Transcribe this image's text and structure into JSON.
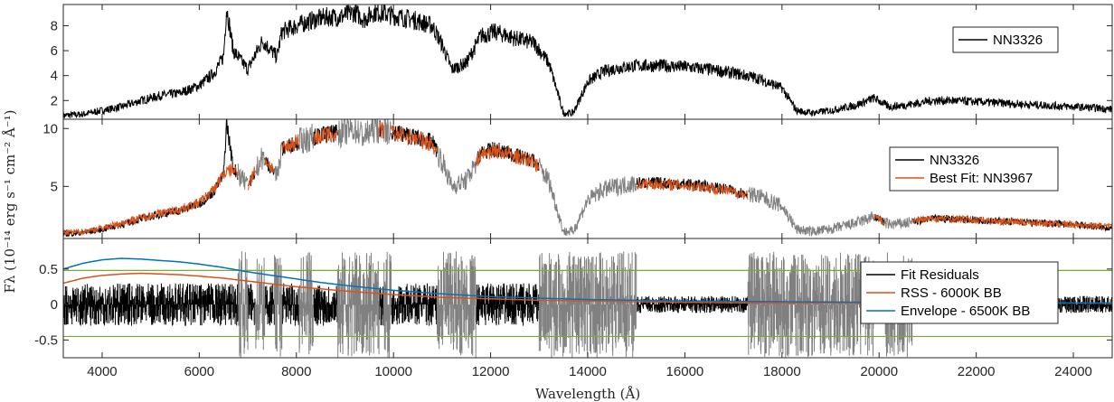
{
  "chart_data": {
    "type": "line",
    "xlabel": "Wavelength (Å)",
    "ylabel": "Fλ (10⁻¹⁴ erg s⁻¹ cm⁻² Å⁻¹)",
    "xlim": [
      3200,
      24800
    ],
    "x_ticks": [
      "4000",
      "6000",
      "8000",
      "10000",
      "12000",
      "14000",
      "16000",
      "18000",
      "20000",
      "22000",
      "24000"
    ],
    "x_tick_values": [
      4000,
      6000,
      8000,
      10000,
      12000,
      14000,
      16000,
      18000,
      20000,
      22000,
      24000
    ],
    "colors": {
      "observed": "#000000",
      "fit": "#D95319",
      "masked": "#808080",
      "rss": "#D95319",
      "envelope": "#0072BD",
      "threshold": "#77AC30"
    },
    "panels": [
      {
        "id": "spectrum",
        "ylim": [
          0.5,
          9.7
        ],
        "y_ticks": [
          "2",
          "4",
          "6",
          "8"
        ],
        "y_tick_values": [
          2,
          4,
          6,
          8
        ],
        "legend_position": "top-right",
        "legend": [
          {
            "label": "NN3326",
            "color": "#000000"
          }
        ],
        "series": [
          {
            "name": "NN3326",
            "x": [
              3200,
              3600,
              4000,
              4400,
              4800,
              5200,
              5600,
              6000,
              6300,
              6500,
              6563,
              6700,
              7000,
              7300,
              7600,
              7700,
              8000,
              8300,
              8600,
              8900,
              9200,
              9400,
              9600,
              9800,
              10000,
              10400,
              10800,
              11000,
              11200,
              11500,
              11800,
              12100,
              12500,
              12900,
              13200,
              13500,
              13700,
              14000,
              14300,
              14600,
              15000,
              15500,
              16000,
              16500,
              17000,
              17500,
              18000,
              18300,
              18600,
              19000,
              19500,
              19900,
              20200,
              20500,
              20800,
              21100,
              21500,
              22000,
              22500,
              23000,
              23500,
              24000,
              24500,
              24800
            ],
            "y": [
              0.8,
              0.9,
              1.2,
              1.5,
              2.0,
              2.4,
              2.6,
              3.2,
              4.2,
              5.5,
              9.5,
              6.0,
              4.5,
              6.8,
              5.5,
              7.5,
              8.0,
              8.4,
              8.7,
              8.7,
              9.1,
              8.5,
              9.1,
              9.0,
              8.8,
              8.5,
              8.0,
              6.5,
              4.5,
              5.0,
              7.2,
              7.5,
              7.0,
              6.6,
              5.0,
              1.0,
              1.0,
              3.5,
              4.3,
              4.6,
              4.8,
              4.8,
              4.7,
              4.5,
              4.2,
              3.8,
              3.0,
              1.2,
              1.0,
              1.2,
              1.6,
              2.2,
              1.5,
              1.6,
              1.8,
              2.0,
              2.0,
              1.9,
              1.8,
              1.7,
              1.6,
              1.5,
              1.4,
              1.3
            ]
          }
        ]
      },
      {
        "id": "fit",
        "ylim": [
          0.5,
          10.8
        ],
        "y_ticks": [
          "5",
          "10"
        ],
        "y_tick_values": [
          5,
          10
        ],
        "legend_position": "top-right",
        "legend": [
          {
            "label": "NN3326",
            "color": "#000000"
          },
          {
            "label": "Best Fit: NN3967",
            "color": "#D95319"
          }
        ],
        "series": [
          {
            "name": "NN3326",
            "x": [
              3200,
              3600,
              4000,
              4400,
              4800,
              5200,
              5600,
              6000,
              6300,
              6500,
              6563,
              6700,
              7000,
              7300,
              7600,
              7700,
              8000,
              8300,
              8600,
              8900,
              9200,
              9400,
              9600,
              9800,
              10000,
              10400,
              10800,
              11000,
              11200,
              11500,
              11800,
              12100,
              12500,
              12900,
              13200,
              13500,
              13700,
              14000,
              14300,
              14600,
              15000,
              15500,
              16000,
              16500,
              17000,
              17500,
              18000,
              18300,
              18600,
              19000,
              19500,
              19900,
              20200,
              20500,
              20800,
              21100,
              21500,
              22000,
              22500,
              23000,
              23500,
              24000,
              24500,
              24800
            ],
            "y": [
              0.9,
              1.0,
              1.3,
              1.7,
              2.2,
              2.6,
              2.9,
              3.5,
              4.6,
              6.0,
              10.5,
              6.6,
              5.0,
              7.5,
              6.0,
              8.2,
              8.8,
              9.2,
              9.5,
              9.6,
              10.0,
              9.3,
              10.0,
              9.9,
              9.7,
              9.3,
              8.8,
              7.2,
              5.0,
              5.5,
              7.9,
              8.2,
              7.7,
              7.2,
              5.5,
              1.1,
              1.1,
              3.8,
              4.7,
              5.0,
              5.3,
              5.3,
              5.2,
              5.0,
              4.6,
              4.2,
              3.3,
              1.3,
              1.1,
              1.3,
              1.8,
              2.4,
              1.7,
              1.8,
              2.0,
              2.2,
              2.2,
              2.1,
              2.0,
              1.9,
              1.8,
              1.7,
              1.5,
              1.4
            ]
          },
          {
            "name": "Best Fit: NN3967",
            "x": [
              3200,
              3600,
              4000,
              4400,
              4800,
              5200,
              5600,
              6000,
              6300,
              6500,
              6700,
              7000,
              7300,
              7600,
              7700,
              8000,
              8300,
              8600,
              8900,
              9200,
              9400,
              9600,
              9800,
              10000,
              10400,
              10800,
              11000,
              11200,
              11500,
              11800,
              12100,
              12500,
              12900,
              13200,
              13500,
              13700,
              14000,
              14300,
              14600,
              15000,
              15500,
              16000,
              16500,
              17000,
              17500,
              18000,
              18300,
              18600,
              19000,
              19500,
              19900,
              20200,
              20500,
              20800,
              21100,
              21500,
              22000,
              22500,
              23000,
              23500,
              24000,
              24500,
              24800
            ],
            "y": [
              1.0,
              1.1,
              1.4,
              1.8,
              2.3,
              2.7,
              3.0,
              3.6,
              4.7,
              6.1,
              6.5,
              5.1,
              7.6,
              6.1,
              8.1,
              8.9,
              9.1,
              9.4,
              9.5,
              9.8,
              9.2,
              9.9,
              9.8,
              9.6,
              9.2,
              8.7,
              7.1,
              5.1,
              5.6,
              7.8,
              8.1,
              7.6,
              7.1,
              5.4,
              1.2,
              1.2,
              3.7,
              4.6,
              4.9,
              5.2,
              5.2,
              5.1,
              4.9,
              4.5,
              4.1,
              3.2,
              1.4,
              1.2,
              1.4,
              1.9,
              2.3,
              1.8,
              1.9,
              2.1,
              2.2,
              2.2,
              2.1,
              2.0,
              1.9,
              1.8,
              1.7,
              1.6,
              1.5
            ]
          }
        ]
      },
      {
        "id": "residuals",
        "ylim": [
          -0.75,
          0.93
        ],
        "y_ticks": [
          "-0.5",
          "0",
          "0.5"
        ],
        "y_tick_values": [
          -0.5,
          0,
          0.5
        ],
        "legend_position": "right",
        "legend": [
          {
            "label": "Fit Residuals",
            "color": "#000000"
          },
          {
            "label": "RSS - 6000K BB",
            "color": "#D95319"
          },
          {
            "label": "Envelope - 6500K BB",
            "color": "#0072BD"
          }
        ],
        "thresholds": [
          0.48,
          -0.45
        ],
        "series": [
          {
            "name": "RSS - 6000K BB",
            "x": [
              3200,
              3600,
              4000,
              4400,
              4800,
              5200,
              5600,
              6000,
              6500,
              7000,
              7500,
              8000,
              8500,
              9000,
              10000,
              11000,
              12000,
              13000,
              14000,
              15000,
              16000,
              18000,
              20000,
              22000,
              24000,
              24800
            ],
            "y": [
              0.3,
              0.37,
              0.41,
              0.43,
              0.44,
              0.43,
              0.42,
              0.4,
              0.37,
              0.33,
              0.29,
              0.25,
              0.22,
              0.19,
              0.14,
              0.1,
              0.08,
              0.06,
              0.05,
              0.04,
              0.03,
              0.02,
              0.02,
              0.02,
              0.02,
              0.02
            ]
          },
          {
            "name": "Envelope - 6500K BB",
            "x": [
              3200,
              3600,
              4000,
              4400,
              4800,
              5200,
              5600,
              6000,
              6500,
              7000,
              7500,
              8000,
              8500,
              9000,
              10000,
              11000,
              12000,
              13000,
              14000,
              15000,
              16000,
              18000,
              20000,
              22000,
              24000,
              24800
            ],
            "y": [
              0.5,
              0.58,
              0.63,
              0.65,
              0.64,
              0.62,
              0.6,
              0.57,
              0.52,
              0.46,
              0.41,
              0.36,
              0.31,
              0.27,
              0.2,
              0.15,
              0.11,
              0.09,
              0.07,
              0.06,
              0.05,
              0.04,
              0.03,
              0.03,
              0.02,
              0.02
            ]
          }
        ]
      }
    ],
    "masked_regions": [
      [
        6800,
        7000
      ],
      [
        7150,
        7350
      ],
      [
        7550,
        7700
      ],
      [
        8050,
        8350
      ],
      [
        8850,
        9700
      ],
      [
        9800,
        9950
      ],
      [
        10900,
        11700
      ],
      [
        13000,
        15000
      ],
      [
        17300,
        19900
      ],
      [
        20100,
        20700
      ]
    ]
  }
}
